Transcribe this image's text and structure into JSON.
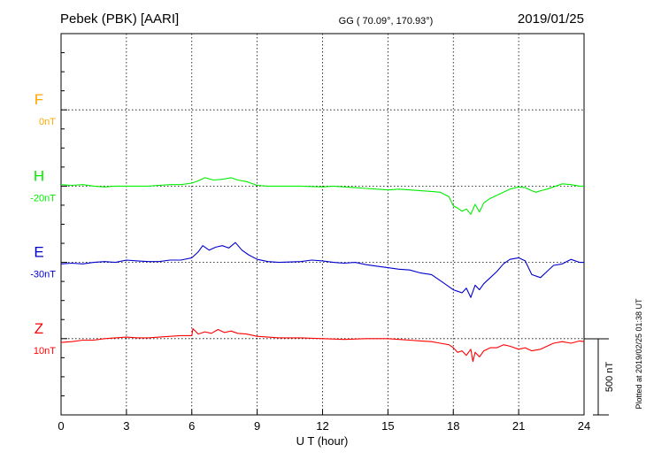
{
  "header": {
    "station": "Pebek (PBK)  [AARI]",
    "coords": "GG ( 70.09°, 170.93°)",
    "date": "2019/01/25"
  },
  "side_note": "Plotted at 2019/02/25 01:38 UT",
  "chart_data": {
    "type": "line",
    "xlabel": "U T (hour)",
    "xlim": [
      0,
      24
    ],
    "xticks": [
      "0",
      "3",
      "6",
      "9",
      "12",
      "15",
      "18",
      "21",
      "24"
    ],
    "y_units": "nT",
    "scale_bar_label": "500 nT",
    "scale_bar_nT": 500,
    "nT_per_division": 250,
    "grid": true,
    "series": [
      {
        "name": "F",
        "offset_label": "0nT",
        "color": "#ffa500",
        "row": 1,
        "x": [],
        "y": []
      },
      {
        "name": "H",
        "offset_label": "-20nT",
        "color": "#00ee00",
        "row": 2,
        "x": [
          0,
          0.5,
          1,
          1.5,
          2,
          2.5,
          3,
          3.5,
          4,
          4.5,
          5,
          5.5,
          6,
          6.3,
          6.6,
          7,
          7.4,
          7.8,
          8.1,
          8.5,
          9,
          9.5,
          10,
          11,
          12,
          12.5,
          13,
          13.5,
          14,
          14.5,
          15,
          15.5,
          16,
          16.5,
          17,
          17.4,
          17.8,
          18,
          18.2,
          18.4,
          18.6,
          18.8,
          19,
          19.2,
          19.4,
          19.7,
          20,
          20.3,
          20.6,
          21,
          21.3,
          21.6,
          21.8,
          22,
          22.3,
          22.6,
          23,
          23.4,
          23.8,
          24
        ],
        "y": [
          10,
          5,
          10,
          0,
          -5,
          0,
          0,
          0,
          0,
          5,
          10,
          10,
          20,
          35,
          55,
          40,
          45,
          55,
          40,
          30,
          5,
          0,
          0,
          0,
          -5,
          0,
          -5,
          -10,
          -15,
          -20,
          -25,
          -20,
          -25,
          -30,
          -35,
          -40,
          -70,
          -130,
          -145,
          -165,
          -150,
          -185,
          -120,
          -170,
          -110,
          -80,
          -60,
          -40,
          -20,
          -5,
          -10,
          -30,
          -40,
          -30,
          -20,
          -5,
          15,
          10,
          0,
          0
        ]
      },
      {
        "name": "E",
        "offset_label": "-30nT",
        "color": "#0000cc",
        "row": 3,
        "x": [
          0,
          0.5,
          1,
          1.5,
          2,
          2.5,
          3,
          3.5,
          4,
          4.5,
          5,
          5.5,
          6,
          6.3,
          6.5,
          6.8,
          7.1,
          7.4,
          7.7,
          8,
          8.3,
          8.6,
          9,
          9.5,
          10,
          11,
          11.5,
          12,
          12.5,
          13,
          13.5,
          14,
          14.5,
          15,
          15.5,
          16,
          16.5,
          17,
          17.4,
          17.8,
          18,
          18.2,
          18.4,
          18.6,
          18.8,
          19,
          19.2,
          19.4,
          19.7,
          20,
          20.3,
          20.6,
          21,
          21.3,
          21.6,
          22,
          22.3,
          22.6,
          23,
          23.4,
          23.8,
          24
        ],
        "y": [
          -10,
          -5,
          -10,
          0,
          5,
          0,
          15,
          10,
          5,
          5,
          15,
          15,
          30,
          70,
          110,
          80,
          100,
          110,
          95,
          130,
          80,
          50,
          20,
          5,
          0,
          5,
          15,
          10,
          0,
          -5,
          0,
          -15,
          -25,
          -35,
          -45,
          -50,
          -70,
          -80,
          -120,
          -160,
          -180,
          -190,
          -200,
          -170,
          -230,
          -150,
          -180,
          -140,
          -100,
          -60,
          -10,
          20,
          30,
          10,
          -80,
          -100,
          -60,
          -20,
          -10,
          20,
          0,
          0
        ]
      },
      {
        "name": "Z",
        "offset_label": "10nT",
        "color": "#ff0000",
        "row": 4,
        "x": [
          0,
          0.5,
          1,
          1.5,
          2,
          2.5,
          3,
          3.5,
          4,
          4.5,
          5,
          5.5,
          6,
          6.05,
          6.3,
          6.6,
          6.9,
          7.2,
          7.5,
          7.8,
          8.1,
          8.5,
          9,
          9.5,
          10,
          11,
          12,
          13,
          14,
          15,
          15.5,
          16,
          16.5,
          17,
          17.4,
          17.8,
          18,
          18.2,
          18.4,
          18.6,
          18.8,
          18.9,
          19,
          19.2,
          19.4,
          19.7,
          20,
          20.3,
          20.6,
          21,
          21.3,
          21.6,
          22,
          22.3,
          22.6,
          23,
          23.4,
          23.8,
          24
        ],
        "y": [
          -25,
          -20,
          -10,
          -10,
          0,
          5,
          10,
          5,
          5,
          10,
          15,
          20,
          20,
          65,
          30,
          45,
          35,
          60,
          40,
          50,
          35,
          30,
          15,
          10,
          5,
          5,
          0,
          -5,
          0,
          0,
          -5,
          -10,
          -15,
          -20,
          -30,
          -40,
          -60,
          -90,
          -80,
          -110,
          -70,
          -150,
          -90,
          -120,
          -80,
          -60,
          -60,
          -40,
          -50,
          -70,
          -60,
          -80,
          -70,
          -50,
          -30,
          -20,
          -30,
          -15,
          -20
        ]
      }
    ]
  }
}
